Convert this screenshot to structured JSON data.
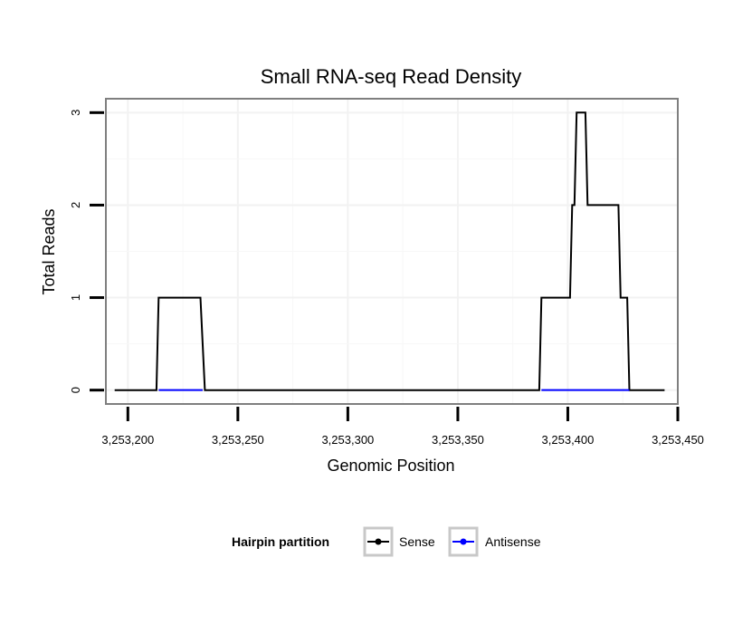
{
  "chart_data": {
    "type": "line",
    "title": "Small RNA-seq Read Density",
    "xlabel": "Genomic Position",
    "ylabel": "Total Reads",
    "xlim": [
      3253190,
      3253450
    ],
    "ylim": [
      -0.15,
      3.15
    ],
    "x_ticks": [
      3253200,
      3253250,
      3253300,
      3253350,
      3253400,
      3253450
    ],
    "x_tick_labels": [
      "3,253,200",
      "3,253,250",
      "3,253,300",
      "3,253,350",
      "3,253,400",
      "3,253,450"
    ],
    "y_ticks": [
      0,
      1,
      2,
      3
    ],
    "y_tick_labels": [
      "0",
      "1",
      "2",
      "3"
    ],
    "grid": true,
    "legend": {
      "title": "Hairpin partition",
      "position": "bottom"
    },
    "series": [
      {
        "name": "Sense",
        "color": "#000000",
        "x": [
          3253194,
          3253213,
          3253214,
          3253233,
          3253235,
          3253387,
          3253388,
          3253401,
          3253402,
          3253403,
          3253404,
          3253408,
          3253409,
          3253423,
          3253424,
          3253427,
          3253428,
          3253444
        ],
        "y": [
          0,
          0,
          1,
          1,
          0,
          0,
          1,
          1,
          2,
          2,
          3,
          3,
          2,
          2,
          1,
          1,
          0,
          0
        ]
      },
      {
        "name": "Antisense",
        "color": "#0000ff",
        "x": [
          3253214,
          3253234,
          3253388,
          3253428
        ],
        "y": [
          0,
          0,
          0,
          0
        ],
        "segments": [
          [
            0,
            1
          ],
          [
            2,
            3
          ]
        ]
      }
    ]
  }
}
